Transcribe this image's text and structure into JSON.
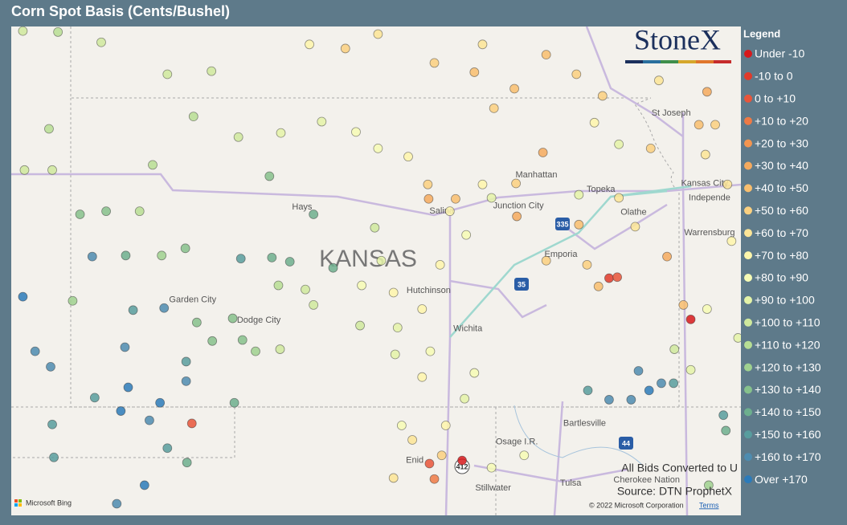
{
  "title": "Corn Spot Basis (Cents/Bushel)",
  "logo": "StoneX",
  "legend": {
    "title": "Legend",
    "labels": [
      "Under -10",
      "-10 to 0",
      "0 to +10",
      "+10 to +20",
      "+20 to +30",
      "+30 to +40",
      "+40 to +50",
      "+50 to +60",
      "+60 to +70",
      "+70 to +80",
      "+80 to +90",
      "+90 to +100",
      "+100 to +110",
      "+110 to +120",
      "+120 to +130",
      "+130 to +140",
      "+140 to +150",
      "+150 to +160",
      "+160 to +170",
      "Over +170"
    ],
    "colors": [
      "#d7191c",
      "#e03a2a",
      "#e8553a",
      "#ee7a45",
      "#f29550",
      "#f5aa5e",
      "#f8be6e",
      "#fad080",
      "#fce597",
      "#fef6ab",
      "#f6fbb5",
      "#e4f3a8",
      "#cfe99d",
      "#b7de94",
      "#9fd18f",
      "#86c18c",
      "#6daf8e",
      "#589d9e",
      "#4d8cb0",
      "#2b7bba"
    ],
    "breaks": [
      -10,
      0,
      10,
      20,
      30,
      40,
      50,
      60,
      70,
      80,
      90,
      100,
      110,
      120,
      130,
      140,
      150,
      160,
      170
    ]
  },
  "state_label": "KANSAS",
  "places": {
    "names": [
      "Hays",
      "Manhattan",
      "Topeka",
      "Kansas City",
      "Independe",
      "St Joseph",
      "Olathe",
      "Warrensburg",
      "Salina",
      "Junction City",
      "Emporia",
      "Hutchinson",
      "Wichita",
      "Garden City",
      "Dodge City",
      "Bartlesville",
      "Osage I.R.",
      "Enid",
      "Stillwater",
      "Tulsa",
      "Cherokee Nation"
    ],
    "lon": [
      -99.22,
      -96.35,
      -95.56,
      -94.29,
      -94.23,
      -94.7,
      -95.16,
      -94.23,
      -97.51,
      -96.57,
      -96.05,
      -97.67,
      -97.19,
      -100.56,
      -99.75,
      -95.76,
      -96.59,
      -97.84,
      -96.88,
      -95.93,
      -95.0
    ],
    "lat": [
      38.94,
      39.25,
      39.11,
      39.17,
      39.03,
      39.85,
      38.89,
      38.69,
      38.9,
      38.95,
      38.48,
      38.13,
      37.76,
      38.04,
      37.84,
      36.84,
      36.66,
      36.48,
      36.21,
      36.26,
      36.29
    ]
  },
  "shields": [
    "335",
    "35",
    "44",
    "412"
  ],
  "bids": {
    "lon": [
      -102.64,
      -102.21,
      -101.68,
      -100.87,
      -100.33,
      -100.55,
      -100.0,
      -102.32,
      -102.62,
      -102.28,
      -101.05,
      -101.94,
      -101.62,
      -101.21,
      -101.79,
      -101.38,
      -100.94,
      -100.65,
      -99.97,
      -99.59,
      -99.37,
      -98.84,
      -99.62,
      -99.08,
      -102.64,
      -102.03,
      -101.29,
      -100.91,
      -100.51,
      -100.07,
      -99.95,
      -99.79,
      -100.32,
      -100.64,
      -100.64,
      -101.39,
      -102.49,
      -102.3,
      -101.35,
      -100.96,
      -101.76,
      -101.44,
      -101.09,
      -100.05,
      -102.28,
      -100.87,
      -102.26,
      -100.63,
      -101.15,
      -101.49,
      -99.48,
      -98.98,
      -98.56,
      -98.29,
      -97.92,
      -97.68,
      -99.51,
      -99.18,
      -99.08,
      -98.51,
      -99.49,
      -98.49,
      -98.1,
      -97.75,
      -98.05,
      -97.65,
      -98.08,
      -97.75,
      -97.11,
      -97.23,
      -97.87,
      -97.51,
      -98.1,
      -98.33,
      -98.25,
      -97.53,
      -97.21,
      -96.9,
      -97.41,
      -97.01,
      -97.34,
      -97.67,
      -96.9,
      -96.5,
      -99.13,
      -98.69,
      -98.29,
      -97.6,
      -97.01,
      -96.62,
      -96.23,
      -95.86,
      -95.54,
      -94.85,
      -94.26,
      -94.16,
      -95.34,
      -95.64,
      -96.27,
      -96.6,
      -95.83,
      -95.34,
      -95.14,
      -95.83,
      -96.59,
      -96.23,
      -95.73,
      -94.75,
      -94.28,
      -93.96,
      -94.55,
      -94.26,
      -93.88,
      -94.46,
      -95.1,
      -94.82,
      -94.97,
      -95.46,
      -95.72,
      -95.19,
      -94.06,
      -94.03,
      -94.24,
      -95.59,
      -95.46,
      -95.36,
      -94.46,
      -100.57,
      -97.26,
      -97.66,
      -97.6,
      -98.0,
      -97.46,
      -97.11,
      -96.87,
      -94.36,
      -94.95,
      -94.01,
      -94.66,
      -94.67
    ],
    "lat": [
      40.65,
      40.64,
      40.54,
      40.23,
      40.26,
      39.82,
      39.62,
      39.7,
      39.3,
      39.3,
      39.35,
      38.87,
      38.9,
      38.9,
      38.46,
      38.47,
      38.47,
      38.54,
      38.44,
      38.45,
      38.41,
      38.35,
      39.24,
      38.87,
      38.07,
      38.03,
      37.94,
      37.96,
      37.82,
      37.86,
      37.65,
      37.54,
      37.64,
      37.44,
      37.25,
      37.58,
      37.54,
      37.39,
      37.19,
      37.04,
      37.09,
      36.96,
      36.87,
      37.04,
      36.83,
      36.6,
      36.51,
      36.46,
      36.24,
      36.06,
      39.66,
      39.77,
      39.67,
      39.51,
      39.43,
      39.16,
      38.18,
      38.14,
      37.99,
      37.79,
      37.56,
      38.18,
      38.11,
      37.95,
      37.77,
      37.54,
      37.51,
      37.29,
      37.33,
      37.08,
      36.68,
      36.53,
      36.31,
      38.74,
      38.42,
      38.38,
      38.67,
      39.03,
      38.9,
      39.16,
      39.02,
      39.02,
      36.41,
      36.53,
      40.52,
      40.48,
      40.62,
      40.34,
      40.52,
      40.09,
      40.42,
      40.23,
      40.02,
      40.17,
      40.06,
      39.74,
      39.55,
      39.76,
      39.47,
      39.17,
      39.06,
      39.03,
      38.75,
      38.77,
      38.85,
      38.42,
      38.38,
      38.46,
      39.45,
      38.61,
      37.99,
      37.95,
      37.67,
      37.36,
      37.35,
      37.23,
      37.16,
      37.07,
      37.16,
      37.07,
      36.92,
      36.77,
      36.24,
      38.17,
      38.25,
      38.26,
      37.85,
      36.84,
      36.48,
      36.45,
      36.3,
      36.82,
      36.82,
      40.25,
      39.9,
      39.74,
      39.51,
      39.16,
      37.56,
      37.23
    ],
    "values": [
      100,
      110,
      105,
      105,
      105,
      110,
      105,
      110,
      100,
      100,
      110,
      130,
      130,
      115,
      160,
      140,
      125,
      130,
      150,
      140,
      140,
      140,
      130,
      140,
      170,
      125,
      150,
      160,
      130,
      135,
      135,
      125,
      135,
      155,
      165,
      165,
      160,
      165,
      170,
      170,
      150,
      170,
      165,
      145,
      150,
      155,
      155,
      140,
      170,
      160,
      95,
      90,
      80,
      80,
      75,
      55,
      110,
      105,
      100,
      105,
      105,
      85,
      75,
      70,
      90,
      80,
      95,
      75,
      80,
      95,
      65,
      55,
      65,
      100,
      95,
      75,
      80,
      95,
      70,
      70,
      40,
      30,
      80,
      80,
      75,
      55,
      60,
      55,
      60,
      45,
      40,
      50,
      50,
      60,
      35,
      55,
      90,
      70,
      30,
      50,
      90,
      65,
      60,
      40,
      30,
      50,
      50,
      35,
      60,
      75,
      40,
      85,
      95,
      95,
      160,
      160,
      170,
      165,
      155,
      160,
      155,
      145,
      120,
      45,
      -5,
      5,
      -15,
      0,
      -15,
      5,
      10,
      80,
      75,
      40,
      55,
      45,
      50,
      60,
      100,
      150
    ]
  },
  "notes": {
    "conversion": "All Bids Converted to U",
    "source": "Source: DTN ProphetX"
  },
  "credits": {
    "bing": "Microsoft Bing",
    "copyright": "© 2022 Microsoft Corporation",
    "terms": "Terms"
  }
}
